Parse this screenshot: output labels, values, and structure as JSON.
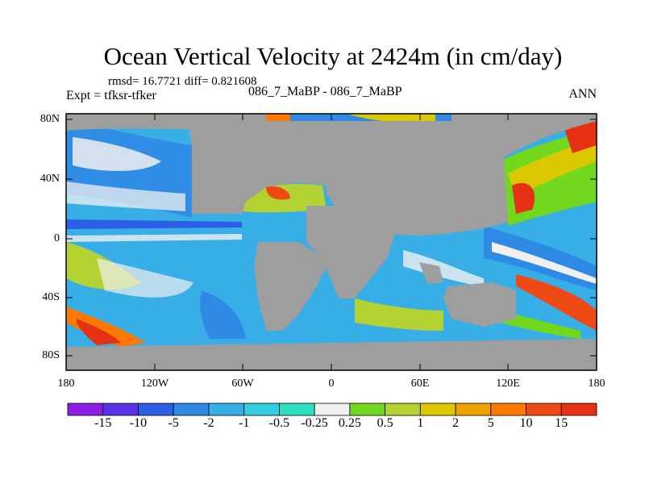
{
  "figure": {
    "title": "Ocean Vertical Velocity at 2424m (in cm/day)",
    "stats": "rmsd= 16.7721 diff= 0.821608",
    "experiment": "Expt = tfksr-tfker",
    "case": "086_7_MaBP - 086_7_MaBP",
    "period": "ANN"
  },
  "axes": {
    "lat_ticks": [
      "80N",
      "40N",
      "0",
      "40S",
      "80S"
    ],
    "lon_ticks": [
      "180",
      "120W",
      "60W",
      "0",
      "60E",
      "120E",
      "180"
    ]
  },
  "colorbar": {
    "colors": [
      "#8c1ee6",
      "#5a32e6",
      "#2c5fe6",
      "#2f8ae6",
      "#38aee6",
      "#34cce0",
      "#2fe0c0",
      "#f0f0f0",
      "#72d81e",
      "#b4d232",
      "#dcc800",
      "#f0a000",
      "#ff7800",
      "#f04a14",
      "#e63214"
    ],
    "labels": [
      "-15",
      "-10",
      "-5",
      "-2",
      "-1",
      "-0.5",
      "-0.25",
      "0.25",
      "0.5",
      "1",
      "2",
      "5",
      "10",
      "15"
    ]
  },
  "colors": {
    "land": "#9e9e9e",
    "ocean_base": "#38aee6"
  }
}
